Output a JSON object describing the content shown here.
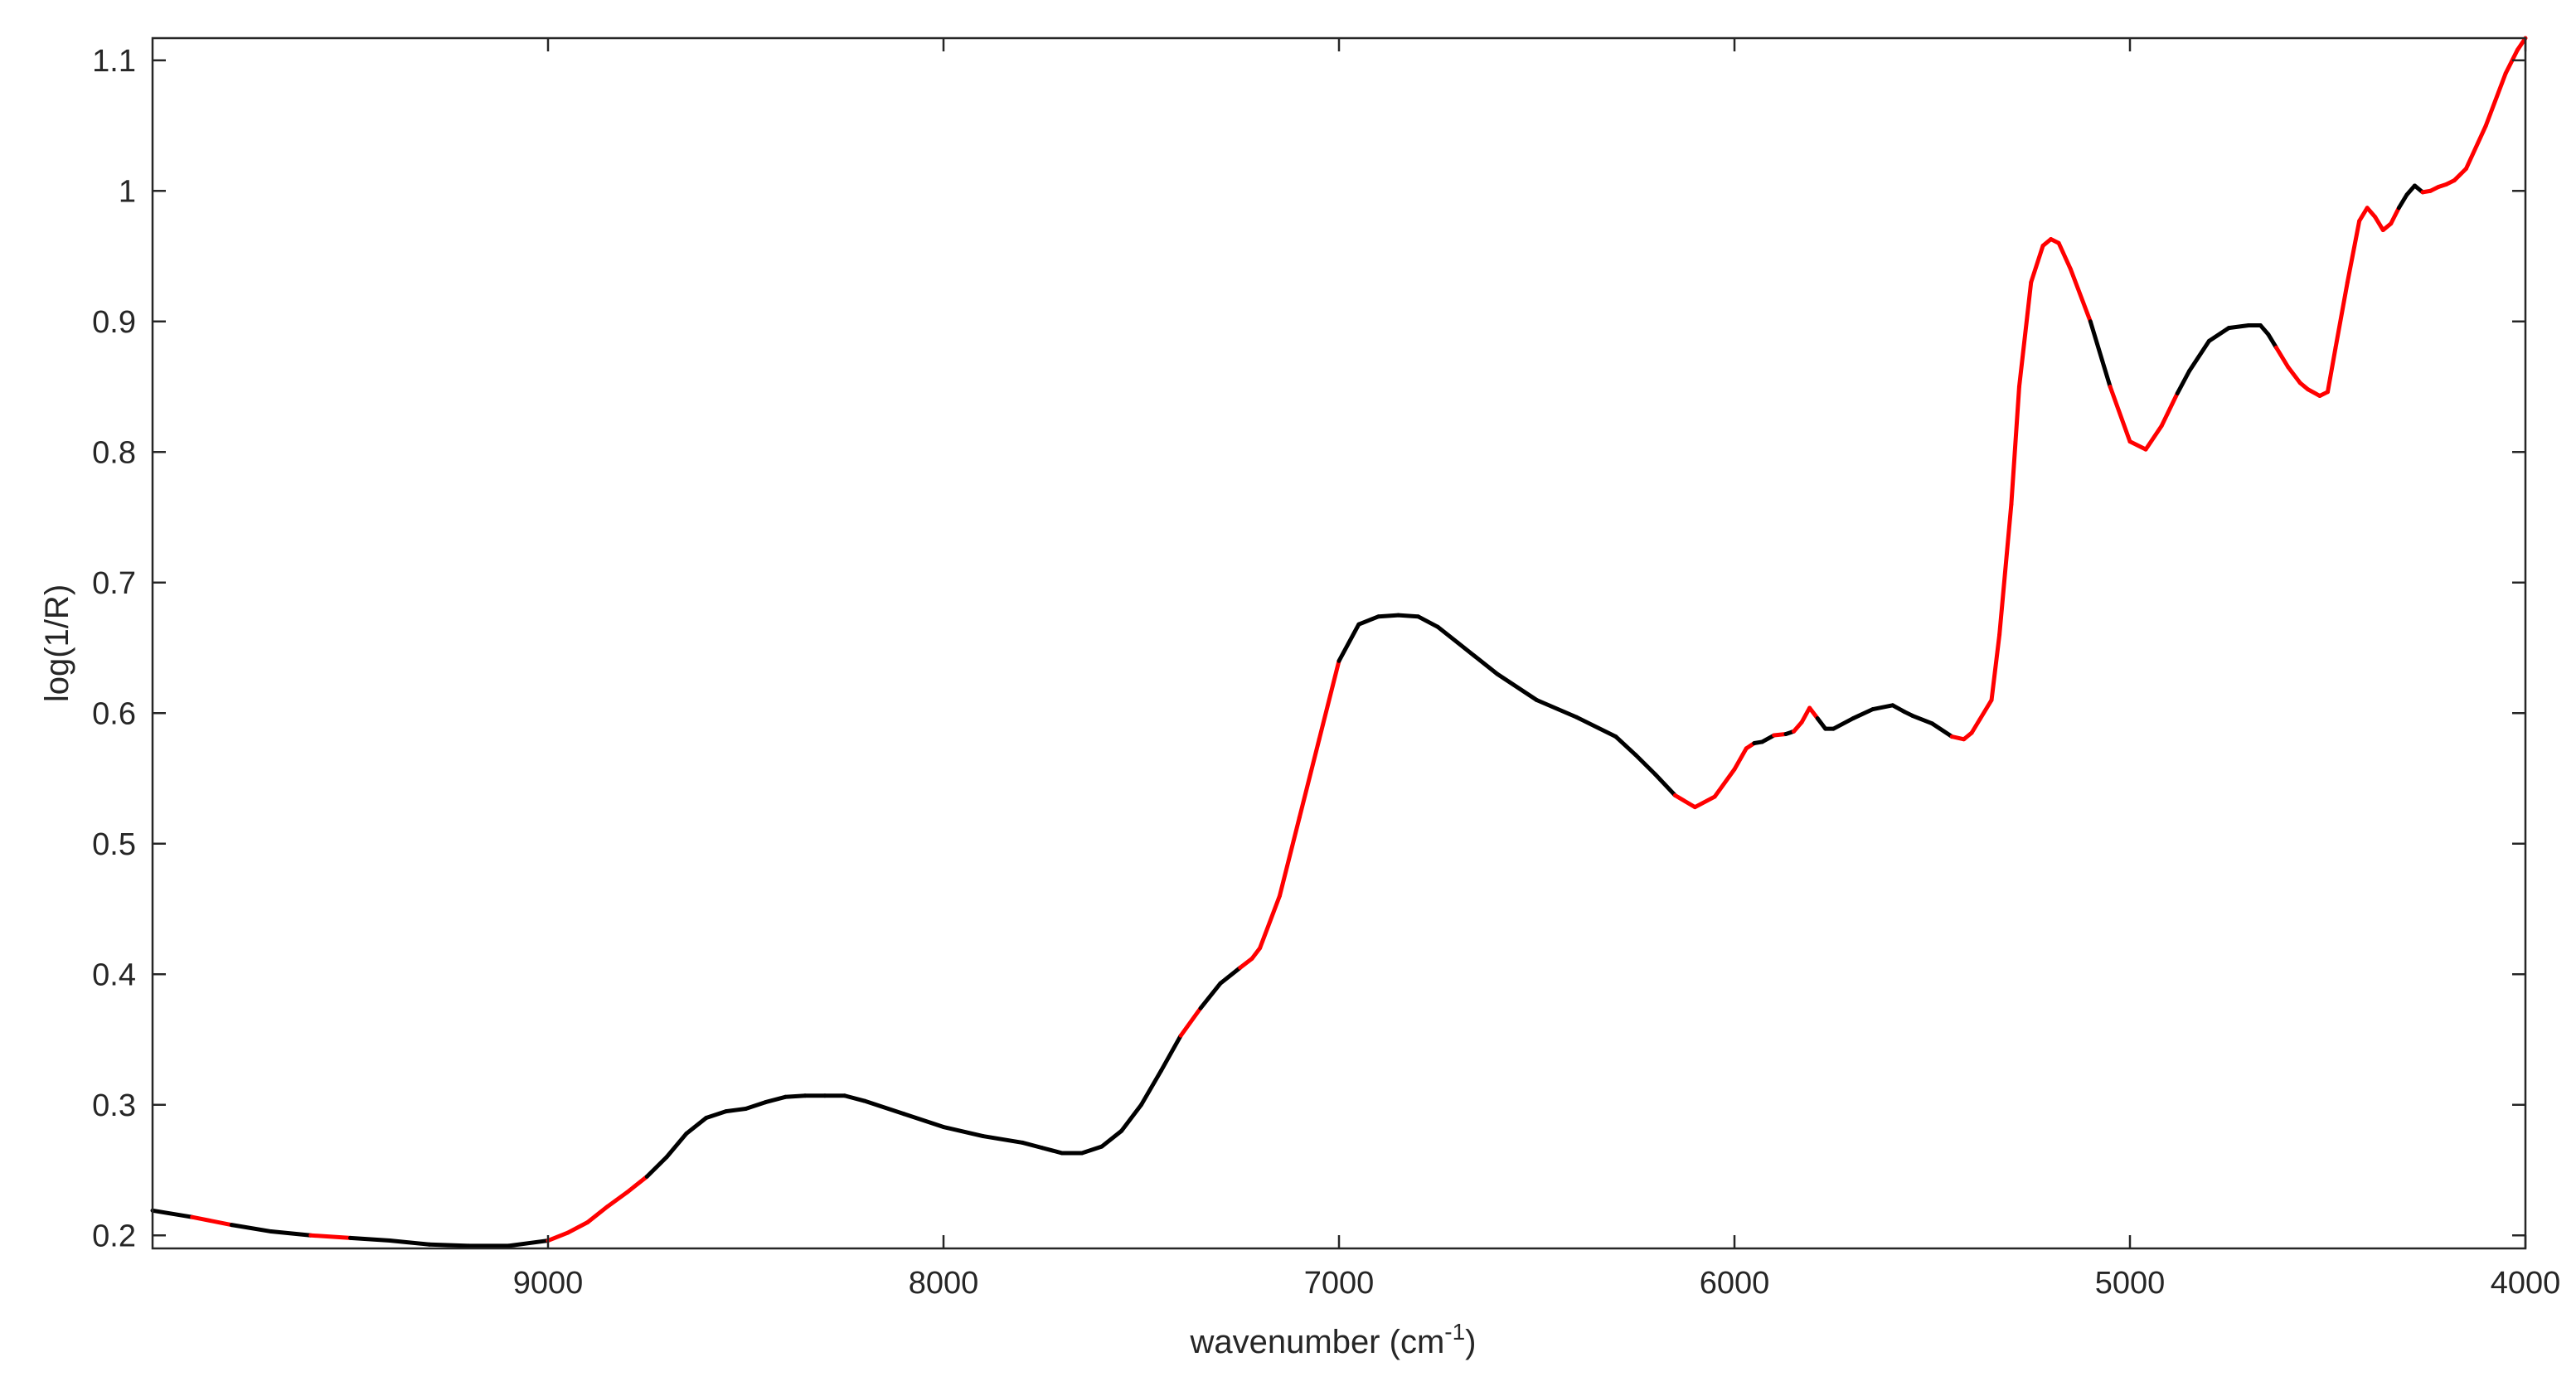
{
  "chart_data": {
    "type": "line",
    "title": "",
    "xlabel": "wavenumber (cm",
    "xlabel_superscript": "-1",
    "xlabel_suffix": ")",
    "ylabel": "log(1/R)",
    "xlim": [
      10000,
      4000
    ],
    "x_reversed": true,
    "ylim": [
      0.19,
      1.117
    ],
    "grid": false,
    "box": true,
    "x_ticks": [
      9000,
      8000,
      7000,
      6000,
      5000,
      4000
    ],
    "x_tick_labels": [
      "9000",
      "8000",
      "7000",
      "6000",
      "5000",
      "4000"
    ],
    "y_ticks": [
      0.2,
      0.3,
      0.4,
      0.5,
      0.6,
      0.7,
      0.8,
      0.9,
      1.0,
      1.1
    ],
    "y_tick_labels": [
      "0.2",
      "0.3",
      "0.4",
      "0.5",
      "0.6",
      "0.7",
      "0.8",
      "0.9",
      "1",
      "1.1"
    ],
    "colors": {
      "base": "#000000",
      "highlight": "#ff0000",
      "axes": "#262626"
    },
    "series": [
      {
        "x": [
          10000,
          9900,
          9800,
          9700,
          9600,
          9500,
          9400,
          9300,
          9200,
          9100,
          9000,
          8950,
          8900,
          8850,
          8800,
          8750,
          8700,
          8650,
          8600,
          8550,
          8500,
          8450,
          8400,
          8350,
          8300,
          8250,
          8200,
          8100,
          8000,
          7900,
          7800,
          7750,
          7700,
          7650,
          7600,
          7550,
          7500,
          7450,
          7400,
          7350,
          7300,
          7250,
          7220,
          7200,
          7150,
          7100,
          7050,
          7000,
          6950,
          6900,
          6850,
          6800,
          6750,
          6700,
          6600,
          6500,
          6400,
          6300,
          6250,
          6200,
          6150,
          6100,
          6050,
          6000,
          5970,
          5950,
          5930,
          5900,
          5870,
          5850,
          5830,
          5810,
          5790,
          5770,
          5750,
          5700,
          5650,
          5600,
          5570,
          5550,
          5500,
          5450,
          5420,
          5400,
          5380,
          5350,
          5330,
          5300,
          5280,
          5250,
          5220,
          5200,
          5180,
          5150,
          5100,
          5050,
          5000,
          4960,
          4920,
          4880,
          4850,
          4800,
          4750,
          4700,
          4670,
          4650,
          4630,
          4600,
          4570,
          4550,
          4520,
          4500,
          4480,
          4450,
          4420,
          4400,
          4380,
          4360,
          4340,
          4320,
          4300,
          4280,
          4260,
          4240,
          4220,
          4200,
          4180,
          4150,
          4100,
          4050,
          4020,
          4000
        ],
        "y": [
          0.219,
          0.214,
          0.208,
          0.203,
          0.2,
          0.198,
          0.196,
          0.193,
          0.192,
          0.192,
          0.196,
          0.202,
          0.21,
          0.222,
          0.233,
          0.245,
          0.26,
          0.278,
          0.29,
          0.295,
          0.297,
          0.302,
          0.306,
          0.307,
          0.307,
          0.307,
          0.303,
          0.293,
          0.283,
          0.276,
          0.271,
          0.267,
          0.263,
          0.263,
          0.268,
          0.28,
          0.3,
          0.326,
          0.353,
          0.374,
          0.393,
          0.405,
          0.412,
          0.42,
          0.46,
          0.52,
          0.58,
          0.64,
          0.668,
          0.674,
          0.675,
          0.674,
          0.666,
          0.654,
          0.63,
          0.61,
          0.597,
          0.582,
          0.568,
          0.553,
          0.537,
          0.528,
          0.536,
          0.557,
          0.573,
          0.577,
          0.578,
          0.583,
          0.584,
          0.586,
          0.593,
          0.604,
          0.596,
          0.588,
          0.588,
          0.596,
          0.603,
          0.606,
          0.601,
          0.598,
          0.592,
          0.582,
          0.58,
          0.585,
          0.595,
          0.61,
          0.66,
          0.76,
          0.85,
          0.93,
          0.958,
          0.963,
          0.96,
          0.94,
          0.9,
          0.85,
          0.808,
          0.802,
          0.82,
          0.845,
          0.862,
          0.885,
          0.895,
          0.897,
          0.897,
          0.89,
          0.88,
          0.865,
          0.853,
          0.848,
          0.843,
          0.846,
          0.88,
          0.93,
          0.977,
          0.987,
          0.98,
          0.97,
          0.975,
          0.987,
          0.997,
          1.004,
          0.999,
          1.0,
          1.003,
          1.005,
          1.008,
          1.017,
          1.05,
          1.09,
          1.108,
          1.117
        ],
        "segment_colors": [
          "base",
          "highlight",
          "base",
          "base",
          "highlight",
          "base",
          "base",
          "base",
          "base",
          "base",
          "highlight",
          "highlight",
          "highlight",
          "highlight",
          "highlight",
          "base",
          "base",
          "base",
          "base",
          "base",
          "base",
          "base",
          "base",
          "base",
          "base",
          "base",
          "base",
          "base",
          "base",
          "base",
          "base",
          "base",
          "base",
          "base",
          "base",
          "base",
          "base",
          "base",
          "highlight",
          "base",
          "base",
          "highlight",
          "highlight",
          "highlight",
          "highlight",
          "highlight",
          "highlight",
          "base",
          "base",
          "base",
          "base",
          "base",
          "base",
          "base",
          "base",
          "base",
          "base",
          "base",
          "base",
          "base",
          "highlight",
          "highlight",
          "highlight",
          "highlight",
          "highlight",
          "base",
          "base",
          "highlight",
          "base",
          "highlight",
          "highlight",
          "highlight",
          "base",
          "base",
          "base",
          "base",
          "base",
          "base",
          "base",
          "base",
          "base",
          "highlight",
          "highlight",
          "highlight",
          "highlight",
          "highlight",
          "highlight",
          "highlight",
          "highlight",
          "highlight",
          "highlight",
          "highlight",
          "highlight",
          "highlight",
          "base",
          "highlight",
          "highlight",
          "highlight",
          "highlight",
          "base",
          "base",
          "base",
          "base",
          "base",
          "base",
          "base",
          "highlight",
          "highlight",
          "highlight",
          "highlight",
          "highlight",
          "highlight",
          "highlight",
          "highlight",
          "highlight",
          "highlight",
          "highlight",
          "highlight",
          "highlight",
          "base",
          "base",
          "base",
          "highlight",
          "highlight",
          "highlight",
          "highlight",
          "highlight",
          "highlight",
          "highlight",
          "highlight",
          "highlight"
        ]
      }
    ]
  }
}
